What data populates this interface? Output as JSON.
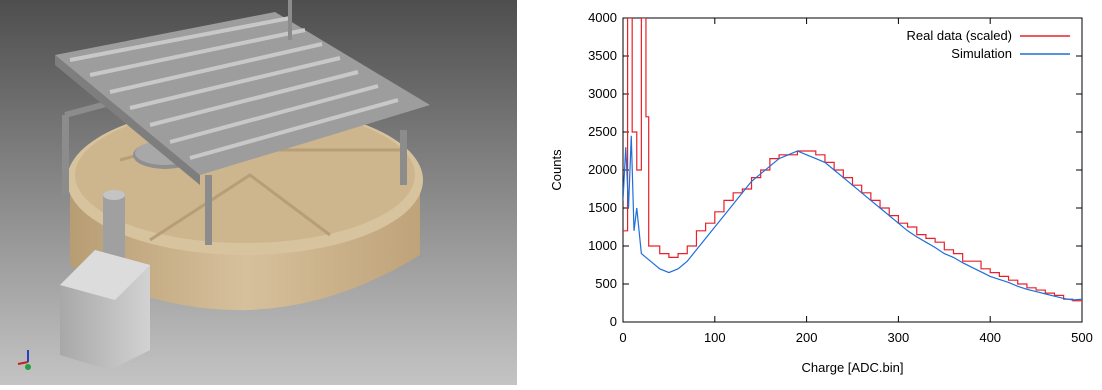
{
  "left_image": {
    "description_icon": "cad-tank-render",
    "axis_triad_icon": "xyz-axis-triad-icon",
    "colors": {
      "tank": "#d9c3a0",
      "frame": "#9a9a9a",
      "background_top": "#5a5a5a",
      "background_bottom": "#bdbdbd"
    }
  },
  "chart_data": {
    "type": "line",
    "xlabel": "Charge [ADC.bin]",
    "ylabel": "Counts",
    "xlim": [
      0,
      500
    ],
    "ylim": [
      0,
      4000
    ],
    "xticks": [
      "0",
      "100",
      "200",
      "300",
      "400",
      "500"
    ],
    "yticks": [
      "0",
      "500",
      "1000",
      "1500",
      "2000",
      "2500",
      "3000",
      "3500",
      "4000"
    ],
    "grid": false,
    "legend_position": "top-right",
    "series": [
      {
        "name": "Real data (scaled)",
        "color": "#e8202a",
        "style": "step",
        "points": [
          [
            0,
            1200
          ],
          [
            5,
            4000
          ],
          [
            10,
            2500
          ],
          [
            15,
            2000
          ],
          [
            20,
            4000
          ],
          [
            25,
            2700
          ],
          [
            28,
            1000
          ],
          [
            35,
            1000
          ],
          [
            40,
            900
          ],
          [
            50,
            850
          ],
          [
            60,
            900
          ],
          [
            70,
            1000
          ],
          [
            80,
            1200
          ],
          [
            90,
            1300
          ],
          [
            100,
            1450
          ],
          [
            110,
            1600
          ],
          [
            120,
            1700
          ],
          [
            130,
            1750
          ],
          [
            140,
            1900
          ],
          [
            150,
            2000
          ],
          [
            160,
            2150
          ],
          [
            170,
            2200
          ],
          [
            180,
            2200
          ],
          [
            190,
            2250
          ],
          [
            200,
            2250
          ],
          [
            210,
            2200
          ],
          [
            220,
            2100
          ],
          [
            230,
            2000
          ],
          [
            240,
            1900
          ],
          [
            250,
            1800
          ],
          [
            260,
            1700
          ],
          [
            270,
            1600
          ],
          [
            280,
            1500
          ],
          [
            290,
            1400
          ],
          [
            300,
            1300
          ],
          [
            310,
            1250
          ],
          [
            320,
            1150
          ],
          [
            330,
            1100
          ],
          [
            340,
            1050
          ],
          [
            350,
            950
          ],
          [
            360,
            900
          ],
          [
            370,
            800
          ],
          [
            380,
            800
          ],
          [
            390,
            700
          ],
          [
            400,
            650
          ],
          [
            410,
            600
          ],
          [
            420,
            550
          ],
          [
            430,
            500
          ],
          [
            440,
            450
          ],
          [
            450,
            420
          ],
          [
            460,
            380
          ],
          [
            470,
            350
          ],
          [
            480,
            300
          ],
          [
            490,
            280
          ],
          [
            500,
            260
          ]
        ]
      },
      {
        "name": "Simulation",
        "color": "#1f6fd8",
        "style": "line",
        "points": [
          [
            0,
            1600
          ],
          [
            3,
            2300
          ],
          [
            6,
            1500
          ],
          [
            9,
            2450
          ],
          [
            12,
            1200
          ],
          [
            15,
            1500
          ],
          [
            20,
            900
          ],
          [
            25,
            850
          ],
          [
            30,
            800
          ],
          [
            40,
            700
          ],
          [
            50,
            650
          ],
          [
            60,
            700
          ],
          [
            70,
            800
          ],
          [
            80,
            950
          ],
          [
            90,
            1100
          ],
          [
            100,
            1250
          ],
          [
            110,
            1400
          ],
          [
            120,
            1550
          ],
          [
            130,
            1700
          ],
          [
            140,
            1850
          ],
          [
            150,
            1950
          ],
          [
            160,
            2050
          ],
          [
            170,
            2150
          ],
          [
            180,
            2200
          ],
          [
            190,
            2250
          ],
          [
            200,
            2200
          ],
          [
            210,
            2150
          ],
          [
            220,
            2100
          ],
          [
            230,
            2000
          ],
          [
            240,
            1900
          ],
          [
            250,
            1800
          ],
          [
            260,
            1700
          ],
          [
            270,
            1600
          ],
          [
            280,
            1500
          ],
          [
            290,
            1400
          ],
          [
            300,
            1300
          ],
          [
            310,
            1200
          ],
          [
            320,
            1120
          ],
          [
            330,
            1050
          ],
          [
            340,
            980
          ],
          [
            350,
            900
          ],
          [
            360,
            850
          ],
          [
            370,
            780
          ],
          [
            380,
            720
          ],
          [
            390,
            660
          ],
          [
            400,
            600
          ],
          [
            410,
            560
          ],
          [
            420,
            520
          ],
          [
            430,
            470
          ],
          [
            440,
            430
          ],
          [
            450,
            400
          ],
          [
            460,
            370
          ],
          [
            470,
            340
          ],
          [
            480,
            310
          ],
          [
            490,
            290
          ],
          [
            500,
            300
          ]
        ]
      }
    ]
  }
}
